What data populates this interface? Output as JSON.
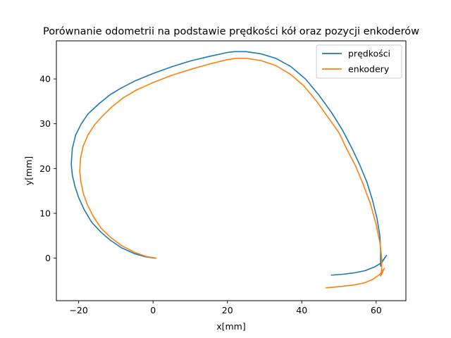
{
  "chart_data": {
    "type": "line",
    "title": "Porównanie odometrii na podstawie prędkości kół oraz pozycji enkoderów",
    "xlabel": "x[mm]",
    "ylabel": "y[mm]",
    "xlim": [
      -26,
      68
    ],
    "ylim": [
      -9.5,
      48.5
    ],
    "xticks": [
      -20,
      0,
      20,
      40,
      60
    ],
    "yticks": [
      0,
      10,
      20,
      30,
      40
    ],
    "xtick_labels": [
      "−20",
      "0",
      "20",
      "40",
      "60"
    ],
    "ytick_labels": [
      "0",
      "10",
      "20",
      "30",
      "40"
    ],
    "grid": false,
    "legend_position": "top-right",
    "series": [
      {
        "name": "prędkości",
        "color": "#1f77b4",
        "points": [
          [
            0.5,
            0
          ],
          [
            -2,
            0.3
          ],
          [
            -5,
            1
          ],
          [
            -8.5,
            2.3
          ],
          [
            -11.5,
            4
          ],
          [
            -14,
            5.8
          ],
          [
            -16.5,
            8
          ],
          [
            -18.5,
            10.8
          ],
          [
            -20,
            13.5
          ],
          [
            -21,
            16
          ],
          [
            -21.7,
            18.5
          ],
          [
            -22,
            21
          ],
          [
            -21.7,
            24.5
          ],
          [
            -20.8,
            27.5
          ],
          [
            -19.3,
            30
          ],
          [
            -17.5,
            32.2
          ],
          [
            -14.5,
            34.5
          ],
          [
            -11.5,
            36.5
          ],
          [
            -8.5,
            38
          ],
          [
            -5,
            39.5
          ],
          [
            0,
            41.2
          ],
          [
            5,
            42.7
          ],
          [
            10,
            44
          ],
          [
            15,
            45
          ],
          [
            20,
            45.9
          ],
          [
            22,
            46.1
          ],
          [
            25,
            46.1
          ],
          [
            29,
            45.6
          ],
          [
            33,
            44.6
          ],
          [
            37,
            42.8
          ],
          [
            41,
            40
          ],
          [
            44.5,
            36.5
          ],
          [
            48,
            32.5
          ],
          [
            51,
            28.5
          ],
          [
            53.5,
            24.5
          ],
          [
            55.5,
            21
          ],
          [
            57.5,
            17
          ],
          [
            59,
            13
          ],
          [
            60.2,
            9
          ],
          [
            61,
            5
          ],
          [
            61.2,
            1.5
          ],
          [
            61.2,
            -1.8
          ],
          [
            61.8,
            -0.5
          ],
          [
            62.8,
            0.6
          ],
          [
            61.5,
            -1
          ],
          [
            59.5,
            -2
          ],
          [
            57,
            -2.8
          ],
          [
            54,
            -3.3
          ],
          [
            51,
            -3.6
          ],
          [
            48,
            -3.8
          ]
        ]
      },
      {
        "name": "enkodery",
        "color": "#ff7f0e",
        "points": [
          [
            0.8,
            0
          ],
          [
            -2,
            0.4
          ],
          [
            -5,
            1.3
          ],
          [
            -8.5,
            2.8
          ],
          [
            -11.5,
            4.7
          ],
          [
            -14,
            6.7
          ],
          [
            -16,
            9.2
          ],
          [
            -17.6,
            11.8
          ],
          [
            -18.7,
            14.3
          ],
          [
            -19.4,
            17
          ],
          [
            -19.7,
            19.5
          ],
          [
            -19.5,
            22.3
          ],
          [
            -18.8,
            25
          ],
          [
            -17.5,
            27.5
          ],
          [
            -15.7,
            29.8
          ],
          [
            -13.5,
            31.8
          ],
          [
            -11,
            33.8
          ],
          [
            -8,
            35.8
          ],
          [
            -4.5,
            37.5
          ],
          [
            0,
            39.2
          ],
          [
            5,
            40.8
          ],
          [
            10,
            42.1
          ],
          [
            15,
            43.3
          ],
          [
            20,
            44.3
          ],
          [
            22.5,
            44.6
          ],
          [
            25,
            44.6
          ],
          [
            29,
            44.1
          ],
          [
            33,
            43
          ],
          [
            37,
            41
          ],
          [
            40.5,
            38.5
          ],
          [
            44,
            35
          ],
          [
            47,
            31.5
          ],
          [
            50,
            28
          ],
          [
            52,
            24.5
          ],
          [
            54.5,
            20.5
          ],
          [
            56.5,
            16.5
          ],
          [
            58.5,
            12
          ],
          [
            60,
            7.5
          ],
          [
            61,
            3.5
          ],
          [
            61.5,
            0
          ],
          [
            61.5,
            -2.5
          ],
          [
            61.2,
            -4
          ],
          [
            62.2,
            -2.3
          ],
          [
            61,
            -3.6
          ],
          [
            59,
            -4.8
          ],
          [
            56.5,
            -5.6
          ],
          [
            54,
            -6
          ],
          [
            51,
            -6.3
          ],
          [
            48.5,
            -6.5
          ],
          [
            46.5,
            -6.6
          ]
        ]
      }
    ]
  }
}
